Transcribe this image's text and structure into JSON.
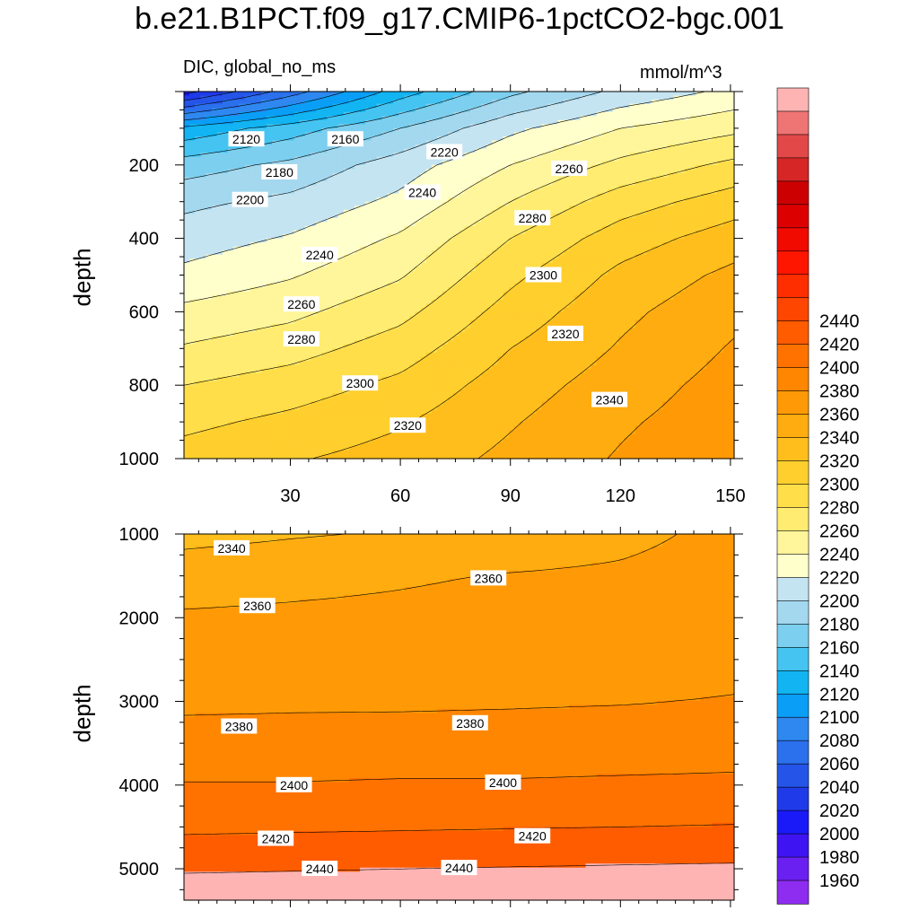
{
  "figure": {
    "title": "b.e21.B1PCT.f09_g17.CMIP6-1pctCO2-bgc.001",
    "variable_label": "DIC, global_no_ms",
    "units_label": "mmol/m^3",
    "top_ylabel": "depth",
    "bottom_ylabel": "depth"
  },
  "chart_data": [
    {
      "type": "contour",
      "panel": "upper",
      "xlabel": "",
      "ylabel": "depth",
      "xlim": [
        1,
        151
      ],
      "ylim": [
        1000,
        0
      ],
      "xticks": [
        30,
        60,
        90,
        120,
        150
      ],
      "yticks": [
        200,
        400,
        600,
        800,
        1000
      ],
      "x": [
        1,
        30,
        60,
        90,
        120,
        151
      ],
      "depths": [
        0,
        100,
        200,
        300,
        400,
        500,
        600,
        700,
        800,
        900,
        1000
      ],
      "values": [
        [
          2012,
          2070,
          2130,
          2175,
          2205,
          2225
        ],
        [
          2125,
          2150,
          2180,
          2215,
          2240,
          2255
        ],
        [
          2170,
          2185,
          2210,
          2240,
          2265,
          2285
        ],
        [
          2195,
          2205,
          2225,
          2260,
          2290,
          2310
        ],
        [
          2210,
          2222,
          2243,
          2280,
          2310,
          2330
        ],
        [
          2225,
          2238,
          2258,
          2295,
          2325,
          2345
        ],
        [
          2245,
          2255,
          2274,
          2308,
          2335,
          2355
        ],
        [
          2262,
          2272,
          2290,
          2320,
          2342,
          2362
        ],
        [
          2280,
          2290,
          2305,
          2330,
          2350,
          2368
        ],
        [
          2295,
          2305,
          2318,
          2338,
          2357,
          2372
        ],
        [
          2308,
          2318,
          2328,
          2345,
          2362,
          2377
        ]
      ],
      "contour_labels": [
        {
          "text": "2120",
          "x": 18,
          "depth": 130
        },
        {
          "text": "2160",
          "x": 45,
          "depth": 130
        },
        {
          "text": "2220",
          "x": 72,
          "depth": 165
        },
        {
          "text": "2180",
          "x": 27,
          "depth": 220
        },
        {
          "text": "2260",
          "x": 106,
          "depth": 210
        },
        {
          "text": "2240",
          "x": 66,
          "depth": 275
        },
        {
          "text": "2200",
          "x": 19,
          "depth": 295
        },
        {
          "text": "2280",
          "x": 96,
          "depth": 345
        },
        {
          "text": "2240",
          "x": 38,
          "depth": 445
        },
        {
          "text": "2300",
          "x": 99,
          "depth": 500
        },
        {
          "text": "2260",
          "x": 33,
          "depth": 580
        },
        {
          "text": "2320",
          "x": 105,
          "depth": 660
        },
        {
          "text": "2280",
          "x": 33,
          "depth": 675
        },
        {
          "text": "2300",
          "x": 49,
          "depth": 795
        },
        {
          "text": "2340",
          "x": 117,
          "depth": 840
        },
        {
          "text": "2320",
          "x": 62,
          "depth": 910
        }
      ]
    },
    {
      "type": "contour",
      "panel": "lower",
      "xlabel": "",
      "ylabel": "depth",
      "xlim": [
        1,
        151
      ],
      "ylim": [
        5375,
        1000
      ],
      "xticks": [
        30,
        60,
        90,
        120,
        150
      ],
      "yticks": [
        1000,
        2000,
        3000,
        4000,
        5000
      ],
      "x": [
        1,
        30,
        60,
        90,
        120,
        151
      ],
      "depths": [
        1000,
        1500,
        2000,
        2500,
        3000,
        3500,
        4000,
        4500,
        5000,
        5375
      ],
      "values": [
        [
          2333,
          2338,
          2342,
          2348,
          2355,
          2365
        ],
        [
          2352,
          2355,
          2358,
          2361,
          2363,
          2368
        ],
        [
          2362,
          2363,
          2364,
          2366,
          2368,
          2371
        ],
        [
          2368,
          2369,
          2370,
          2371,
          2373,
          2375
        ],
        [
          2376,
          2377,
          2377,
          2378,
          2379,
          2381
        ],
        [
          2388,
          2388,
          2389,
          2389,
          2390,
          2391
        ],
        [
          2401,
          2401,
          2402,
          2402,
          2403,
          2404
        ],
        [
          2416,
          2417,
          2418,
          2419,
          2420,
          2421
        ],
        [
          2438,
          2439,
          2440,
          2441,
          2442,
          2443
        ],
        [
          2452,
          2452,
          2452,
          2452,
          2452,
          2452
        ]
      ],
      "contour_labels": [
        {
          "text": "2340",
          "x": 14,
          "depth": 1170
        },
        {
          "text": "2360",
          "x": 84,
          "depth": 1530
        },
        {
          "text": "2360",
          "x": 21,
          "depth": 1860
        },
        {
          "text": "2380",
          "x": 16,
          "depth": 3300
        },
        {
          "text": "2380",
          "x": 79,
          "depth": 3260
        },
        {
          "text": "2400",
          "x": 31,
          "depth": 4000
        },
        {
          "text": "2400",
          "x": 88,
          "depth": 3970
        },
        {
          "text": "2420",
          "x": 26,
          "depth": 4640
        },
        {
          "text": "2420",
          "x": 96,
          "depth": 4610
        },
        {
          "text": "2440",
          "x": 38,
          "depth": 5000
        },
        {
          "text": "2440",
          "x": 76,
          "depth": 4990
        }
      ]
    }
  ],
  "colorbar": {
    "levels": [
      1960,
      1980,
      2000,
      2020,
      2040,
      2060,
      2080,
      2100,
      2120,
      2140,
      2160,
      2180,
      2200,
      2220,
      2240,
      2260,
      2280,
      2300,
      2320,
      2340,
      2360,
      2380,
      2400,
      2420,
      2440
    ],
    "colors": [
      "#8e2cf0",
      "#6b20f2",
      "#3e14f2",
      "#1a1af8",
      "#1f3ae8",
      "#2555e8",
      "#2b70ec",
      "#2e88f0",
      "#0a9ef6",
      "#12b4f2",
      "#45c4f2",
      "#7ccfee",
      "#a3d8ef",
      "#c4e4f2",
      "#ffffcc",
      "#fff59a",
      "#ffec70",
      "#ffde4a",
      "#ffcf2e",
      "#ffbe1c",
      "#ffac10",
      "#ff9a06",
      "#ff8600",
      "#ff7200",
      "#ff5c00",
      "#ff4600",
      "#ff2e00",
      "#ff1600",
      "#f00a00",
      "#dd0000",
      "#cc0000",
      "#d62626",
      "#e24848",
      "#ef7474",
      "#ffb4b4"
    ]
  },
  "colors": {
    "axis": "#000000",
    "contour_line": "#000000",
    "label_bg": "#ffffff"
  }
}
